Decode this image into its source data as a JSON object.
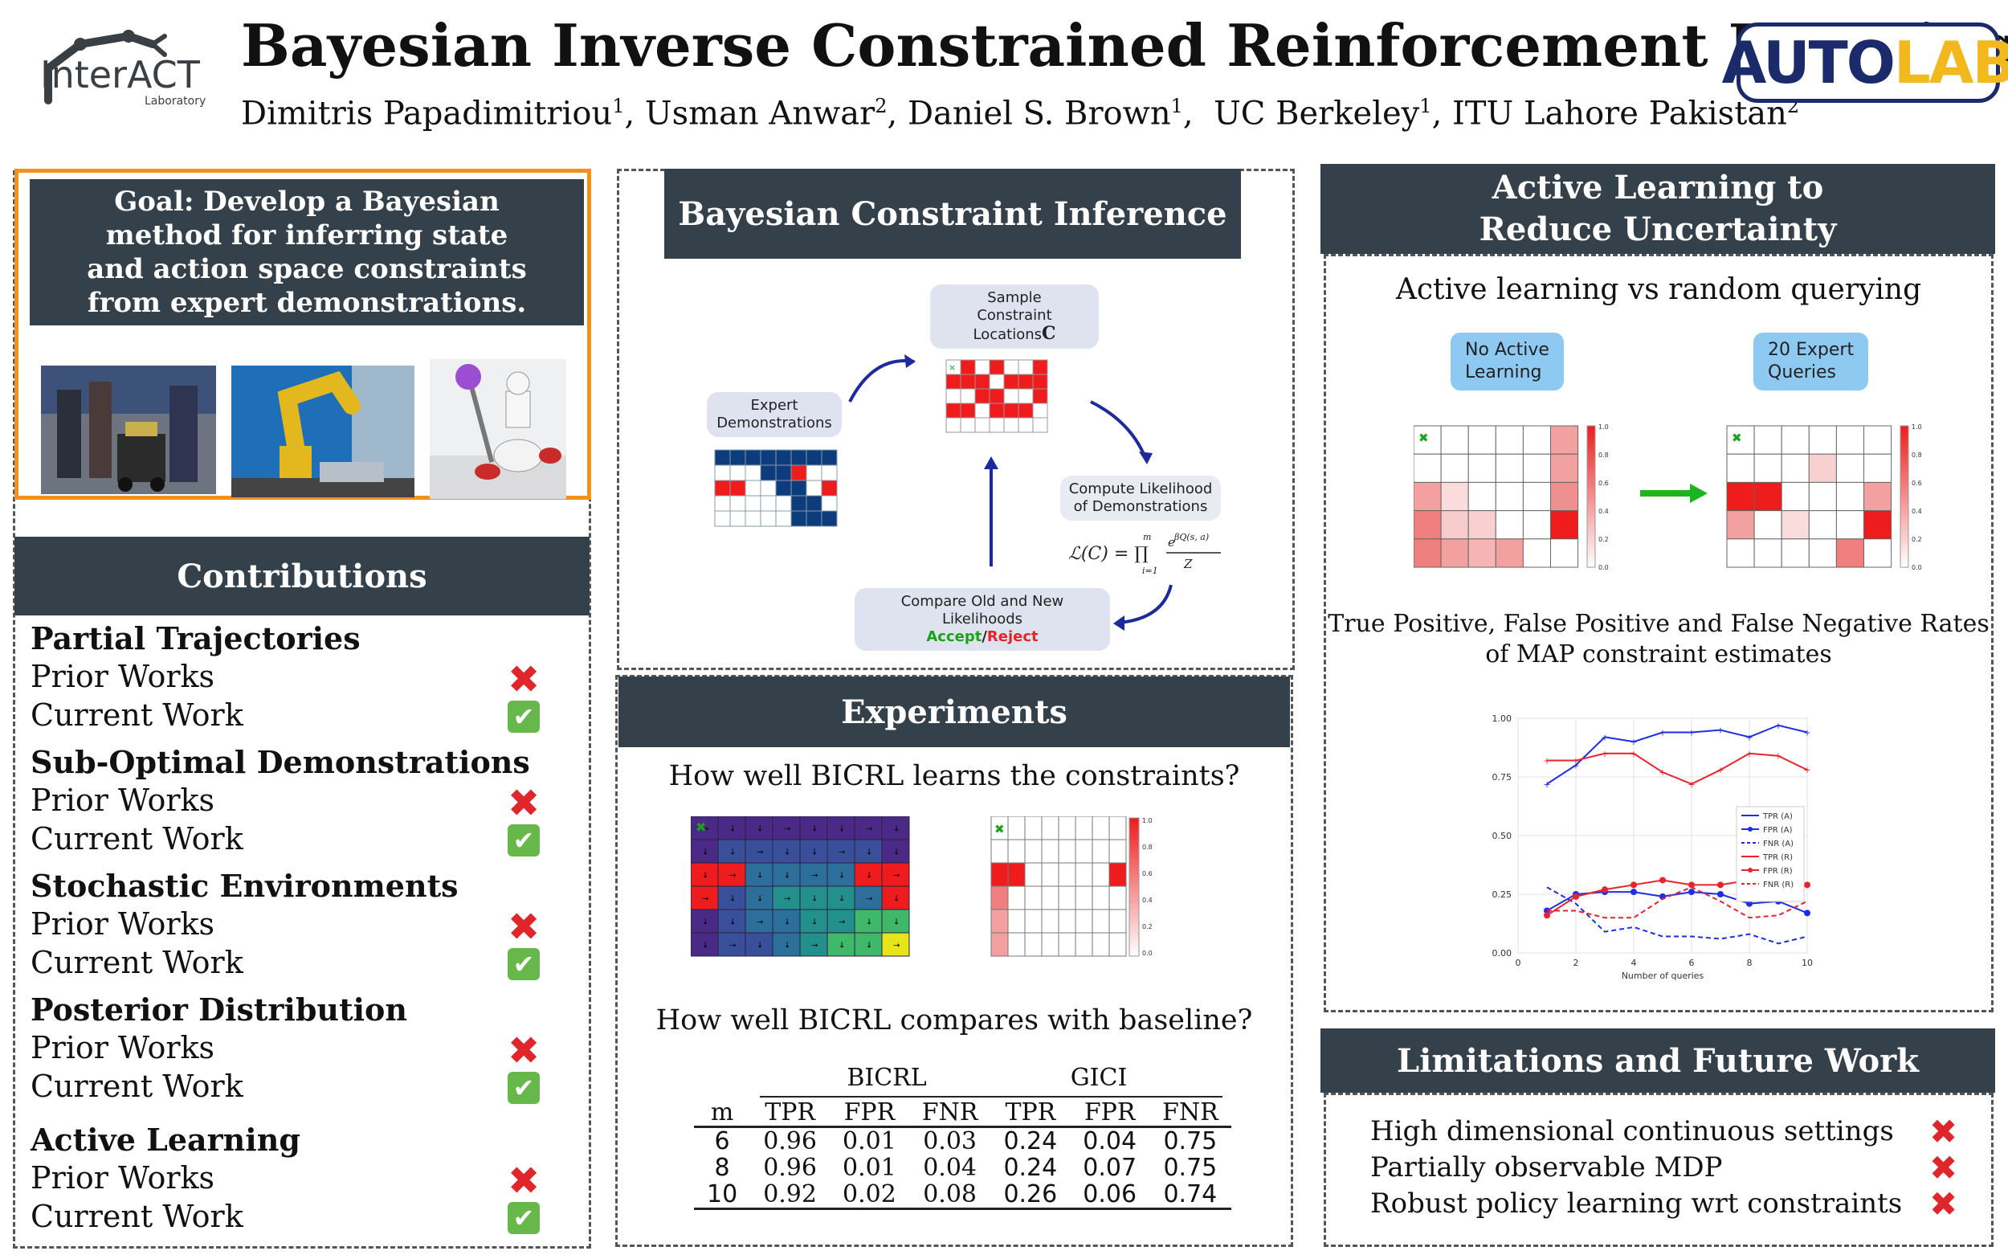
{
  "header": {
    "title": "Bayesian Inverse Constrained Reinforcement Learning",
    "authors": [
      {
        "name": "Dimitris Papadimitriou",
        "sup": "1"
      },
      {
        "name": "Usman Anwar",
        "sup": "2"
      },
      {
        "name": "Daniel S. Brown",
        "sup": "1"
      },
      {
        "name": "UC Berkeley",
        "sup": "1"
      },
      {
        "name": "ITU Lahore Pakistan",
        "sup": "2"
      }
    ],
    "logo_left": {
      "main": "InterACT",
      "sub": "Laboratory"
    },
    "logo_right": {
      "part1": "AUTO",
      "part2": "LAB"
    }
  },
  "goal": {
    "text": "Goal: Develop a Bayesian method for inferring state and action space constraints from expert demonstrations.",
    "photos": [
      "robot-in-crowd-photo",
      "industrial-robot-arm-photo",
      "household-robot-photo"
    ]
  },
  "contributions": {
    "title": "Contributions",
    "prior_label": "Prior Works",
    "current_label": "Current Work",
    "items": [
      {
        "heading": "Partial Trajectories"
      },
      {
        "heading": "Sub-Optimal Demonstrations"
      },
      {
        "heading": "Stochastic Environments"
      },
      {
        "heading": "Posterior Distribution"
      },
      {
        "heading": "Active Learning"
      }
    ]
  },
  "inference": {
    "title": "Bayesian Constraint Inference",
    "sample_label": "Sample\nConstraint Locations",
    "sample_symbol": "C",
    "expert_label": "Expert\nDemonstrations",
    "likelihood_label": "Compute Likelihood\nof Demonstrations",
    "compare_label": "Compare Old and New Likelihoods",
    "accept": "Accept",
    "slash": "/",
    "reject": "Reject",
    "colors": {
      "accept": "#1aa31a",
      "reject": "#e0262b",
      "arrow": "#1c2a9e"
    }
  },
  "experiments": {
    "title": "Experiments",
    "q1": "How well BICRL learns the constraints?",
    "q2": "How well BICRL compares with baseline?",
    "table": {
      "group1": "BICRL",
      "group2": "GICI",
      "columns": [
        "m",
        "TPR",
        "FPR",
        "FNR",
        "TPR",
        "FPR",
        "FNR"
      ],
      "rows": [
        [
          "6",
          "0.96",
          "0.01",
          "0.03",
          "0.24",
          "0.04",
          "0.75"
        ],
        [
          "8",
          "0.96",
          "0.01",
          "0.04",
          "0.24",
          "0.07",
          "0.75"
        ],
        [
          "10",
          "0.92",
          "0.02",
          "0.08",
          "0.26",
          "0.06",
          "0.74"
        ]
      ]
    }
  },
  "active": {
    "title": "Active Learning to Reduce Uncertainty",
    "subtitle": "Active learning vs random querying",
    "left_label": "No Active\nLearning",
    "right_label": "20 Expert\nQueries",
    "colorbar_ticks": [
      "1.0",
      "0.8",
      "0.6",
      "0.4",
      "0.2",
      "0.0"
    ],
    "rates_caption": "True Positive, False Positive and False Negative Rates\nof MAP constraint estimates"
  },
  "limitations": {
    "title": "Limitations and Future Work",
    "items": [
      "High dimensional continuous settings",
      "Partially observable MDP",
      "Robust policy learning wrt constraints"
    ]
  },
  "chart_data": {
    "type": "line",
    "title": "",
    "xlabel": "Number of queries",
    "ylabel": "",
    "xlim": [
      0,
      10
    ],
    "ylim": [
      0,
      1
    ],
    "x": [
      1,
      2,
      3,
      4,
      5,
      6,
      7,
      8,
      9,
      10
    ],
    "x_ticks": [
      "0",
      "2",
      "4",
      "6",
      "8",
      "10"
    ],
    "y_ticks": [
      "0.00",
      "0.25",
      "0.50",
      "0.75",
      "1.00"
    ],
    "grid": true,
    "legend_position": "right-middle",
    "series": [
      {
        "name": "TPR (A)",
        "color": "#1f2ee6",
        "style": "solid",
        "marker": "plus",
        "values": [
          0.72,
          0.8,
          0.92,
          0.9,
          0.94,
          0.94,
          0.95,
          0.92,
          0.97,
          0.94
        ]
      },
      {
        "name": "FPR (A)",
        "color": "#1f2ee6",
        "style": "solid",
        "marker": "dot",
        "values": [
          0.18,
          0.25,
          0.26,
          0.26,
          0.24,
          0.26,
          0.25,
          0.21,
          0.22,
          0.17
        ]
      },
      {
        "name": "FNR (A)",
        "color": "#1f2ee6",
        "style": "dashed",
        "marker": "none",
        "values": [
          0.28,
          0.21,
          0.09,
          0.11,
          0.07,
          0.07,
          0.06,
          0.08,
          0.04,
          0.07
        ]
      },
      {
        "name": "TPR (R)",
        "color": "#e8232b",
        "style": "solid",
        "marker": "plus",
        "values": [
          0.82,
          0.82,
          0.85,
          0.85,
          0.77,
          0.72,
          0.78,
          0.85,
          0.84,
          0.78
        ]
      },
      {
        "name": "FPR (R)",
        "color": "#e8232b",
        "style": "solid",
        "marker": "dot",
        "values": [
          0.16,
          0.24,
          0.27,
          0.29,
          0.31,
          0.29,
          0.29,
          0.31,
          0.24,
          0.29
        ]
      },
      {
        "name": "FNR (R)",
        "color": "#e8232b",
        "style": "dashed",
        "marker": "none",
        "values": [
          0.18,
          0.18,
          0.15,
          0.15,
          0.23,
          0.28,
          0.22,
          0.15,
          0.16,
          0.22
        ]
      }
    ]
  }
}
